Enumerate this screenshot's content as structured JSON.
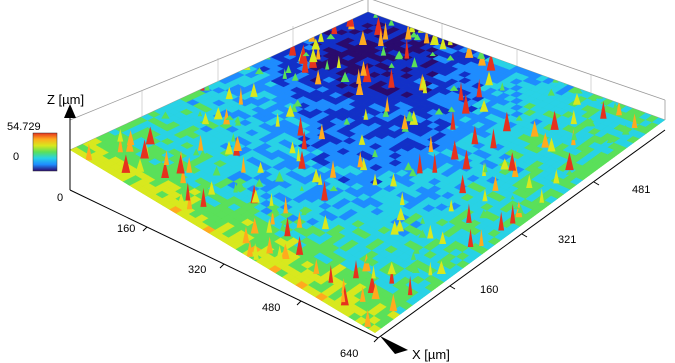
{
  "chart_data": {
    "type": "heatmap",
    "subtype": "3d-surface",
    "title": "",
    "xlabel": "X [µm]",
    "ylabel": "",
    "zlabel": "Z [µm]",
    "x_ticks": [
      "160",
      "320",
      "480",
      "640"
    ],
    "y_ticks": [
      "160",
      "321",
      "481"
    ],
    "z_ticks": [
      "54.729",
      "0",
      "0"
    ],
    "xlim": [
      0,
      640
    ],
    "ylim": [
      0,
      641
    ],
    "zlim": [
      0,
      54.729
    ],
    "colormap": [
      "#2a0a6e",
      "#1230c8",
      "#1e8cff",
      "#28d2e6",
      "#5ae05a",
      "#d8e81e",
      "#ffaa1e",
      "#e6321e"
    ],
    "surface_summary": {
      "dominant_color": "green",
      "low_regions": "blue depression near the back corner and along the right half",
      "high_regions": "orange/red peaks along the left edge and scattered spikes"
    }
  }
}
